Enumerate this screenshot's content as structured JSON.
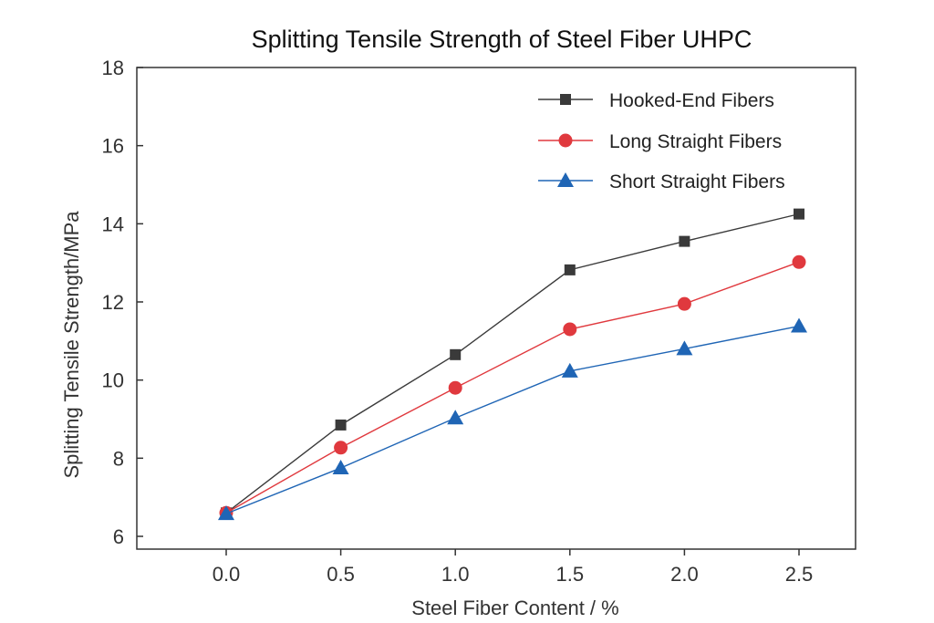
{
  "chart_data": {
    "type": "line",
    "title": "Splitting Tensile Strength of Steel Fiber UHPC",
    "xlabel": "Steel Fiber Content / %",
    "ylabel": "Splitting Tensile Strength/MPa",
    "xlim": [
      -0.45,
      2.8
    ],
    "ylim": [
      5.6,
      18
    ],
    "xticks": [
      0.0,
      0.5,
      1.0,
      1.5,
      2.0,
      2.5
    ],
    "xtick_labels": [
      "0.0",
      "0.5",
      "1.0",
      "1.5",
      "2.0",
      "2.5"
    ],
    "yticks": [
      6,
      8,
      10,
      12,
      14,
      16,
      18
    ],
    "ytick_labels": [
      "6",
      "8",
      "10",
      "12",
      "14",
      "16",
      "18"
    ],
    "grid": false,
    "legend_position": "top-right",
    "series": [
      {
        "name": "Hooked-End Fibers",
        "marker": "square",
        "color": "#3a3a3a",
        "x": [
          0.0,
          0.5,
          1.0,
          1.5,
          2.0,
          2.5
        ],
        "values": [
          6.6,
          8.85,
          10.65,
          12.82,
          13.55,
          14.25
        ]
      },
      {
        "name": "Long Straight Fibers",
        "marker": "circle",
        "color": "#e0393e",
        "x": [
          0.0,
          0.5,
          1.0,
          1.5,
          2.0,
          2.5
        ],
        "values": [
          6.6,
          8.27,
          9.8,
          11.3,
          11.95,
          13.02
        ]
      },
      {
        "name": "Short Straight Fibers",
        "marker": "triangle",
        "color": "#1f65b5",
        "x": [
          0.0,
          0.5,
          1.0,
          1.5,
          2.0,
          2.5
        ],
        "values": [
          6.58,
          7.75,
          9.03,
          10.23,
          10.8,
          11.38
        ]
      }
    ]
  }
}
